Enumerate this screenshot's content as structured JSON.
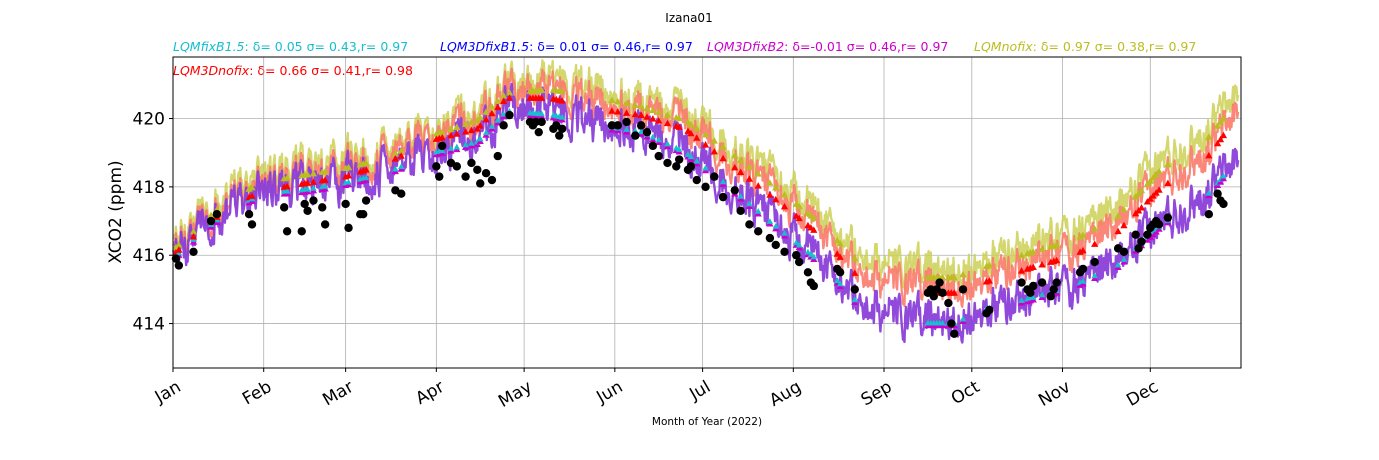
{
  "chart_data": {
    "type": "line",
    "title": "Izana01",
    "xlabel": "Month of Year (2022)",
    "ylabel": "XCO2 (ppm)",
    "xlim": [
      "2022-01-01",
      "2023-01-01"
    ],
    "ylim": [
      412.7,
      421.8
    ],
    "yticks": [
      414,
      416,
      418,
      420
    ],
    "xticks": [
      {
        "date": "2022-01-01",
        "label": "Jan"
      },
      {
        "date": "2022-02-01",
        "label": "Feb"
      },
      {
        "date": "2022-03-01",
        "label": "Mar"
      },
      {
        "date": "2022-04-01",
        "label": "Apr"
      },
      {
        "date": "2022-05-01",
        "label": "May"
      },
      {
        "date": "2022-06-01",
        "label": "Jun"
      },
      {
        "date": "2022-07-01",
        "label": "Jul"
      },
      {
        "date": "2022-08-01",
        "label": "Aug"
      },
      {
        "date": "2022-09-01",
        "label": "Sep"
      },
      {
        "date": "2022-10-01",
        "label": "Oct"
      },
      {
        "date": "2022-11-01",
        "label": "Nov"
      },
      {
        "date": "2022-12-01",
        "label": "Dec"
      }
    ],
    "grid": true,
    "legend": [
      {
        "model": "LQMfixB1.5",
        "stats": ": δ= 0.05 σ= 0.43,r= 0.97",
        "color": "#17becf"
      },
      {
        "model": "LQM3DfixB1.5",
        "stats": ": δ= 0.01 σ= 0.46,r= 0.97",
        "color": "#0000ff"
      },
      {
        "model": "LQM3DfixB2",
        "stats": ": δ=-0.01 σ= 0.46,r= 0.97",
        "color": "#cc00cc"
      },
      {
        "model": "LQMnofix",
        "stats": ": δ= 0.97 σ= 0.38,r= 0.97",
        "color": "#bcbd22"
      },
      {
        "model": "LQM3Dnofix",
        "stats": ": δ= 0.66 σ= 0.41,r= 0.98",
        "color": "#ff0000"
      }
    ],
    "line_colors": {
      "nofix": "#cdd055",
      "3Dnofix": "#fa7a6a",
      "fix": "#8a3fd8"
    },
    "line_anchors": {
      "dates": [
        "2022-01-01",
        "2022-01-10",
        "2022-01-20",
        "2022-02-01",
        "2022-02-15",
        "2022-03-01",
        "2022-03-15",
        "2022-04-01",
        "2022-04-15",
        "2022-04-25",
        "2022-05-10",
        "2022-05-25",
        "2022-06-10",
        "2022-06-25",
        "2022-07-10",
        "2022-07-25",
        "2022-08-10",
        "2022-08-25",
        "2022-09-10",
        "2022-09-25",
        "2022-10-05",
        "2022-10-20",
        "2022-11-05",
        "2022-11-20",
        "2022-12-05",
        "2022-12-20",
        "2022-12-31"
      ],
      "fix": [
        416.0,
        416.7,
        417.4,
        417.9,
        418.0,
        418.2,
        418.5,
        419.1,
        419.4,
        420.3,
        420.2,
        419.9,
        419.7,
        419.1,
        418.1,
        417.0,
        415.9,
        414.5,
        414.1,
        414.1,
        414.5,
        414.8,
        415.2,
        415.8,
        417.0,
        417.8,
        418.9
      ],
      "nofix": [
        416.4,
        417.1,
        417.9,
        418.4,
        418.6,
        418.8,
        419.1,
        419.8,
        420.2,
        421.0,
        421.1,
        420.9,
        420.6,
        420.2,
        419.3,
        418.3,
        417.2,
        415.9,
        415.6,
        415.6,
        415.9,
        416.3,
        416.7,
        417.4,
        418.8,
        419.6,
        420.8
      ],
      "3Dnofix": [
        416.2,
        416.9,
        417.6,
        418.1,
        418.3,
        418.5,
        418.9,
        419.6,
        419.9,
        420.8,
        420.8,
        420.5,
        420.3,
        419.9,
        418.9,
        417.9,
        416.8,
        415.4,
        415.1,
        415.1,
        415.4,
        415.8,
        416.2,
        416.9,
        418.2,
        419.0,
        420.3
      ]
    },
    "observations": {
      "dates": [
        "2022-01-02",
        "2022-01-03",
        "2022-01-08",
        "2022-01-14",
        "2022-01-16",
        "2022-01-27",
        "2022-01-28",
        "2022-02-08",
        "2022-02-09",
        "2022-02-14",
        "2022-02-15",
        "2022-02-16",
        "2022-02-18",
        "2022-02-21",
        "2022-02-22",
        "2022-03-01",
        "2022-03-02",
        "2022-03-06",
        "2022-03-07",
        "2022-03-08",
        "2022-03-18",
        "2022-03-20",
        "2022-04-01",
        "2022-04-02",
        "2022-04-03",
        "2022-04-06",
        "2022-04-08",
        "2022-04-11",
        "2022-04-13",
        "2022-04-15",
        "2022-04-16",
        "2022-04-18",
        "2022-04-20",
        "2022-04-22",
        "2022-04-24",
        "2022-04-26",
        "2022-05-03",
        "2022-05-04",
        "2022-05-05",
        "2022-05-06",
        "2022-05-07",
        "2022-05-11",
        "2022-05-12",
        "2022-05-13",
        "2022-05-14",
        "2022-05-31",
        "2022-06-02",
        "2022-06-05",
        "2022-06-08",
        "2022-06-10",
        "2022-06-12",
        "2022-06-14",
        "2022-06-16",
        "2022-06-19",
        "2022-06-22",
        "2022-06-23",
        "2022-06-26",
        "2022-06-27",
        "2022-06-29",
        "2022-07-02",
        "2022-07-05",
        "2022-07-08",
        "2022-07-12",
        "2022-07-14",
        "2022-07-17",
        "2022-07-20",
        "2022-07-24",
        "2022-07-26",
        "2022-07-29",
        "2022-08-02",
        "2022-08-03",
        "2022-08-06",
        "2022-08-07",
        "2022-08-08",
        "2022-08-16",
        "2022-08-17",
        "2022-08-22",
        "2022-09-16",
        "2022-09-17",
        "2022-09-18",
        "2022-09-19",
        "2022-09-20",
        "2022-09-21",
        "2022-09-23",
        "2022-09-24",
        "2022-09-25",
        "2022-09-28",
        "2022-10-06",
        "2022-10-07",
        "2022-10-18",
        "2022-10-20",
        "2022-10-21",
        "2022-10-22",
        "2022-10-25",
        "2022-10-28",
        "2022-10-29",
        "2022-10-30",
        "2022-11-07",
        "2022-11-08",
        "2022-11-12",
        "2022-11-20",
        "2022-11-22",
        "2022-11-26",
        "2022-11-27",
        "2022-11-28",
        "2022-11-30",
        "2022-12-01",
        "2022-12-02",
        "2022-12-03",
        "2022-12-04",
        "2022-12-07",
        "2022-12-21",
        "2022-12-24",
        "2022-12-25",
        "2022-12-26"
      ],
      "values": [
        415.9,
        415.7,
        416.1,
        417.0,
        417.2,
        417.2,
        416.9,
        417.4,
        416.7,
        416.7,
        417.5,
        417.3,
        417.6,
        417.4,
        416.9,
        417.5,
        416.8,
        417.2,
        417.2,
        417.6,
        417.9,
        417.8,
        418.6,
        418.3,
        419.2,
        418.7,
        418.6,
        418.3,
        418.7,
        418.5,
        418.1,
        418.4,
        418.2,
        418.9,
        419.8,
        420.1,
        419.9,
        419.8,
        419.9,
        419.6,
        419.9,
        419.7,
        419.8,
        419.5,
        419.7,
        419.8,
        419.8,
        419.9,
        419.5,
        419.8,
        419.6,
        419.2,
        418.9,
        418.7,
        418.6,
        418.8,
        418.5,
        418.6,
        418.2,
        418.0,
        418.3,
        417.7,
        417.9,
        417.3,
        416.9,
        416.7,
        416.5,
        416.3,
        416.1,
        416.0,
        415.8,
        415.5,
        415.2,
        415.1,
        415.6,
        415.5,
        415.0,
        414.9,
        415.0,
        414.8,
        415.0,
        415.2,
        414.9,
        414.6,
        414.0,
        413.7,
        415.0,
        414.3,
        414.4,
        415.2,
        415.0,
        414.9,
        415.1,
        415.2,
        414.8,
        415.0,
        415.2,
        415.5,
        415.6,
        415.8,
        416.2,
        416.1,
        416.6,
        416.2,
        416.4,
        416.6,
        416.8,
        416.9,
        417.0,
        416.9,
        417.1,
        417.2,
        417.8,
        417.6,
        417.5
      ]
    }
  }
}
